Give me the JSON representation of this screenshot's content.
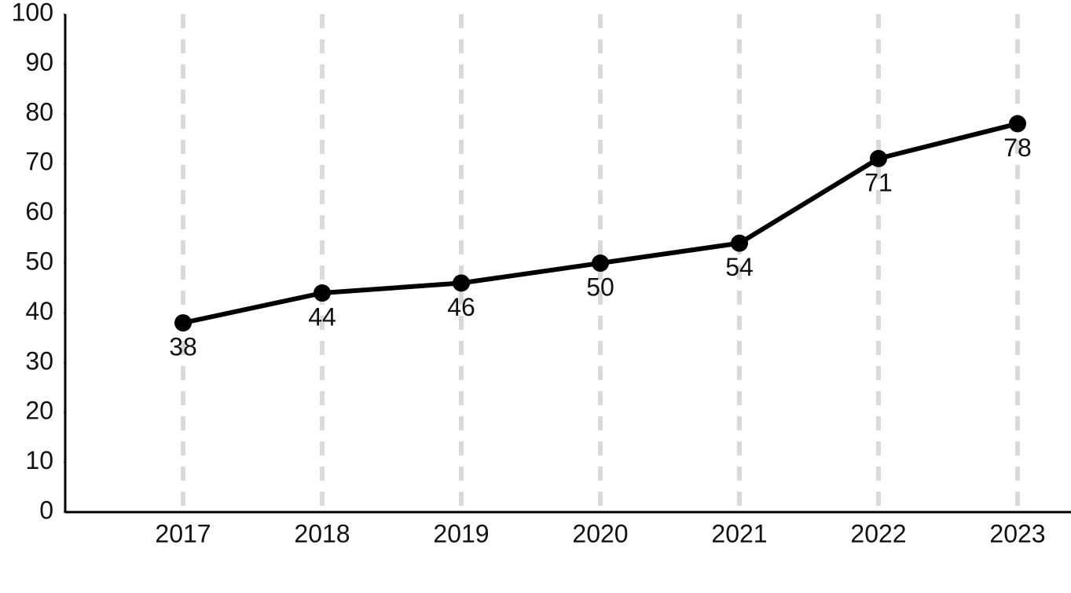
{
  "chart_data": {
    "type": "line",
    "categories": [
      "2017",
      "2018",
      "2019",
      "2020",
      "2021",
      "2022",
      "2023"
    ],
    "values": [
      38,
      44,
      46,
      50,
      54,
      71,
      78
    ],
    "color": "#000000",
    "ylim": [
      0,
      100
    ],
    "yticks": [
      0,
      10,
      20,
      30,
      40,
      50,
      60,
      70,
      80,
      90,
      100
    ],
    "grid": "x"
  }
}
